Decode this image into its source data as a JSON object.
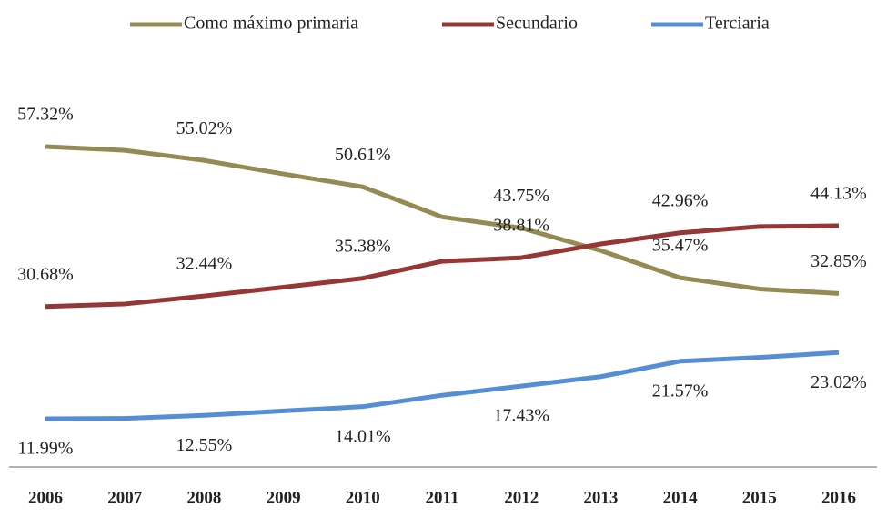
{
  "chart_data": {
    "type": "line",
    "categories": [
      "2006",
      "2007",
      "2008",
      "2009",
      "2010",
      "2011",
      "2012",
      "2013",
      "2014",
      "2015",
      "2016"
    ],
    "series": [
      {
        "name": "Como máximo primaria",
        "color": "#948a54",
        "values": [
          57.32,
          56.7,
          55.02,
          52.76,
          50.61,
          45.6,
          43.75,
          40.0,
          35.47,
          33.6,
          32.85
        ],
        "value_labels": [
          "57.32%",
          null,
          "55.02%",
          null,
          "50.61%",
          null,
          "43.75%",
          null,
          "35.47%",
          null,
          "32.85%"
        ]
      },
      {
        "name": "Secundario",
        "color": "#953735",
        "values": [
          30.68,
          31.1,
          32.44,
          33.9,
          35.38,
          38.2,
          38.81,
          41.1,
          42.96,
          44.0,
          44.13
        ],
        "value_labels": [
          "30.68%",
          null,
          "32.44%",
          null,
          "35.38%",
          null,
          "38.81%",
          null,
          "42.96%",
          null,
          "44.13%"
        ]
      },
      {
        "name": "Terciaria",
        "color": "#558ed5",
        "values": [
          11.99,
          12.05,
          12.55,
          13.3,
          14.01,
          15.9,
          17.43,
          19.0,
          21.57,
          22.2,
          23.02
        ],
        "value_labels": [
          "11.99%",
          null,
          "12.55%",
          null,
          "14.01%",
          null,
          "17.43%",
          null,
          "21.57%",
          null,
          "23.02%"
        ]
      }
    ]
  }
}
